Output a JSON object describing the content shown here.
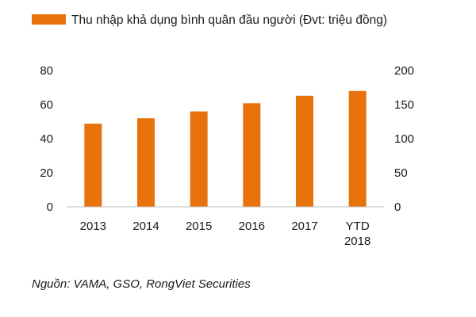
{
  "chart_data": {
    "type": "bar",
    "legend": "Thu nhập khả dụng bình quân đầu người (Đvt: triệu đồng)",
    "legend_position": "top-left",
    "categories": [
      "2013",
      "2014",
      "2015",
      "2016",
      "2017",
      "YTD 2018"
    ],
    "values": [
      122,
      130,
      140,
      152,
      163,
      170
    ],
    "bar_color": "#e8720c",
    "value_axis": "right",
    "y_left_ticks": [
      "80",
      "60",
      "40",
      "20",
      "0"
    ],
    "y_right_ticks": [
      "200",
      "150",
      "100",
      "50",
      "0"
    ],
    "ylim": [
      0,
      200
    ],
    "grid": false
  },
  "source": "Nguồn: VAMA, GSO,  RongViet Securities"
}
